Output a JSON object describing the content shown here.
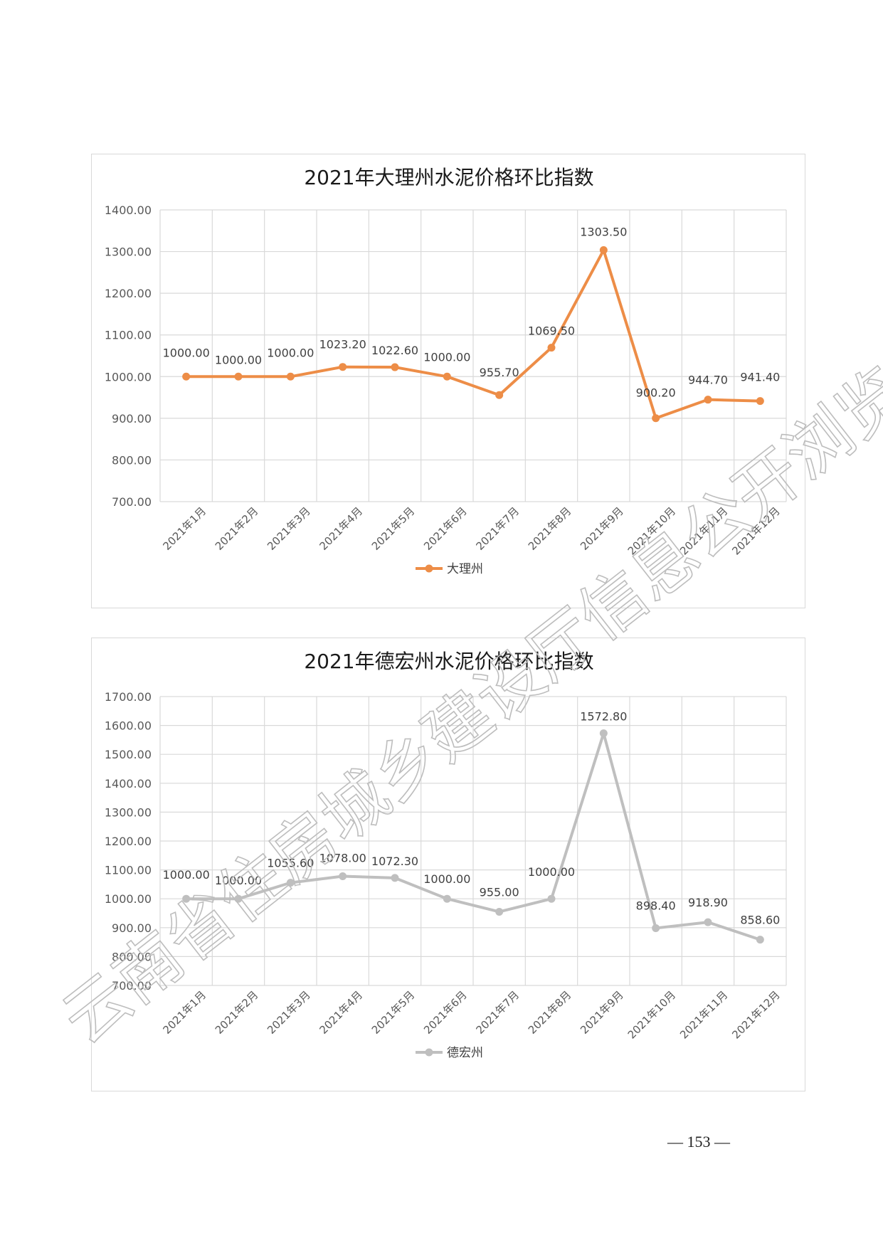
{
  "page": {
    "number": "— 153 —"
  },
  "watermark": {
    "text": "云南省住房城乡建设厅信息公开浏览专用"
  },
  "chart_data": [
    {
      "type": "line",
      "title": "2021年大理州水泥价格环比指数",
      "categories": [
        "2021年1月",
        "2021年2月",
        "2021年3月",
        "2021年4月",
        "2021年5月",
        "2021年6月",
        "2021年7月",
        "2021年8月",
        "2021年9月",
        "2021年10月",
        "2021年11月",
        "2021年12月"
      ],
      "series": [
        {
          "name": "大理州",
          "values": [
            1000.0,
            1000.0,
            1000.0,
            1023.2,
            1022.6,
            1000.0,
            955.7,
            1069.5,
            1303.5,
            900.2,
            944.7,
            941.4
          ],
          "color": "#ed8d47"
        }
      ],
      "data_labels": [
        "1000.00",
        "1000.00",
        "1000.00",
        "1023.20",
        "1022.60",
        "1000.00",
        "955.70",
        "1069.50",
        "1303.50",
        "900.20",
        "944.70",
        "941.40"
      ],
      "ylim": [
        700,
        1400
      ],
      "yticks": [
        "700.00",
        "800.00",
        "900.00",
        "1000.00",
        "1100.00",
        "1200.00",
        "1300.00",
        "1400.00"
      ],
      "grid": true,
      "legend": "bottom",
      "xlabel": "",
      "ylabel": ""
    },
    {
      "type": "line",
      "title": "2021年德宏州水泥价格环比指数",
      "categories": [
        "2021年1月",
        "2021年2月",
        "2021年3月",
        "2021年4月",
        "2021年5月",
        "2021年6月",
        "2021年7月",
        "2021年8月",
        "2021年9月",
        "2021年10月",
        "2021年11月",
        "2021年12月"
      ],
      "series": [
        {
          "name": "德宏州",
          "values": [
            1000.0,
            1000.0,
            1055.6,
            1078.0,
            1072.3,
            1000.0,
            955.0,
            1000.0,
            1572.8,
            898.4,
            918.9,
            858.6
          ],
          "color": "#bfbfbf"
        }
      ],
      "data_labels": [
        "1000.00",
        "1000.00",
        "1055.60",
        "1078.00",
        "1072.30",
        "1000.00",
        "955.00",
        "1000.00",
        "1572.80",
        "898.40",
        "918.90",
        "858.60"
      ],
      "ylim": [
        700,
        1700
      ],
      "yticks": [
        "700.00",
        "800.00",
        "900.00",
        "1000.00",
        "1100.00",
        "1200.00",
        "1300.00",
        "1400.00",
        "1500.00",
        "1600.00",
        "1700.00"
      ],
      "grid": true,
      "legend": "bottom",
      "xlabel": "",
      "ylabel": ""
    }
  ]
}
